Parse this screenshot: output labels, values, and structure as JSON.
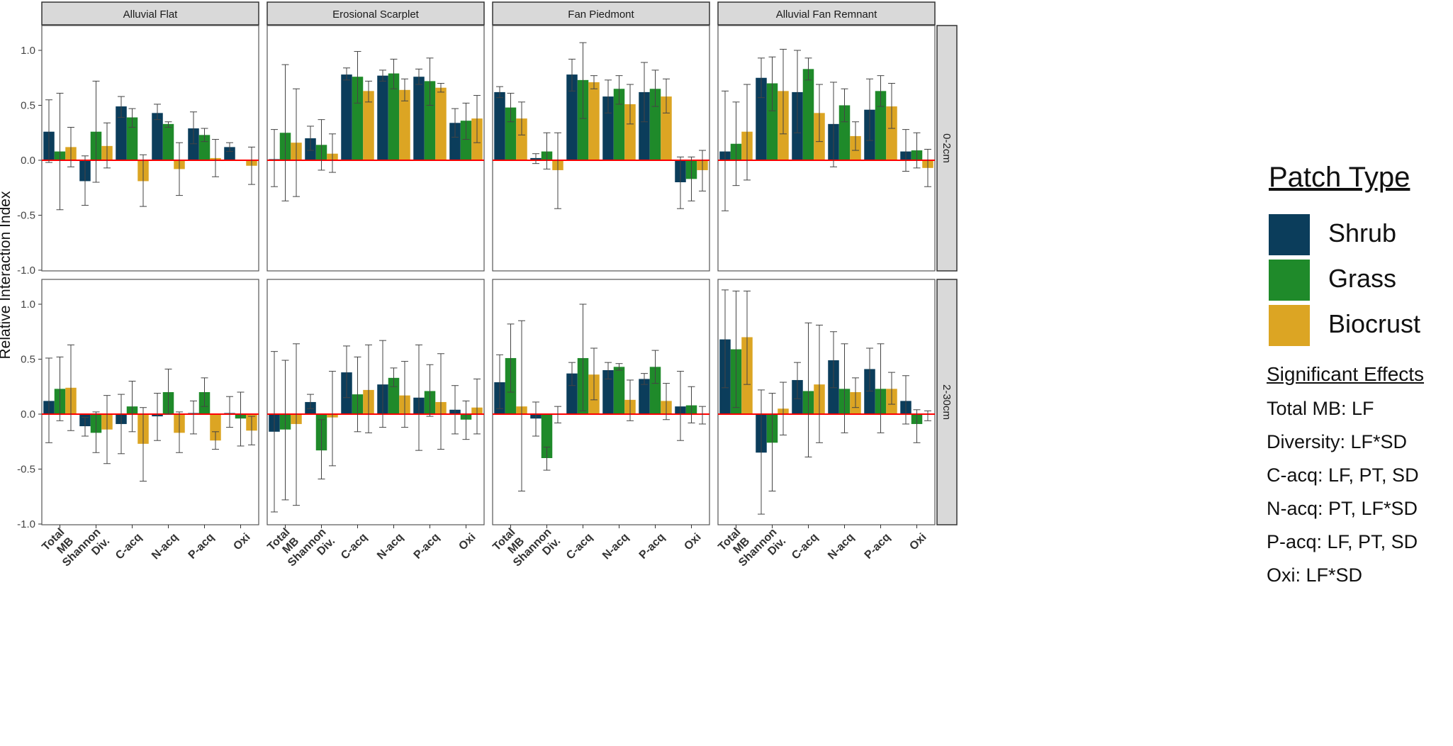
{
  "chart_data": {
    "type": "bar",
    "ylabel": "Relative Interaction Index",
    "ylim": [
      -1.0,
      1.25
    ],
    "yticks": [
      -1.0,
      -0.5,
      0.0,
      0.5,
      1.0
    ],
    "ytick_labels": [
      "-1.0",
      "-0.5",
      "0.0",
      "0.5",
      "1.0"
    ],
    "categories": [
      "Total MB",
      "Shannon Div.",
      "C-acq",
      "N-acq",
      "P-acq",
      "Oxi"
    ],
    "category_label_lines": [
      [
        "Total",
        "MB"
      ],
      [
        "Shannon",
        "Div."
      ],
      [
        "C-acq"
      ],
      [
        "N-acq"
      ],
      [
        "P-acq"
      ],
      [
        "Oxi"
      ]
    ],
    "column_facets": [
      "Alluvial Flat",
      "Erosional Scarplet",
      "Fan Piedmont",
      "Alluvial Fan Remnant"
    ],
    "row_facets": [
      "0-2cm",
      "2-30cm"
    ],
    "series_names": [
      "Shrub",
      "Grass",
      "Biocrust"
    ],
    "series_colors": [
      "#0b3d5b",
      "#1f8a2a",
      "#dca523"
    ],
    "reference_line": {
      "y": 0,
      "color": "#ff0000"
    },
    "panels": [
      {
        "row": "0-2cm",
        "col": "Alluvial Flat",
        "values": [
          [
            0.26,
            0.08,
            0.12
          ],
          [
            -0.19,
            0.26,
            0.13
          ],
          [
            0.49,
            0.39,
            -0.19
          ],
          [
            0.43,
            0.33,
            -0.08
          ],
          [
            0.29,
            0.23,
            0.02
          ],
          [
            0.12,
            0.0,
            -0.05
          ]
        ],
        "errors": [
          [
            [
              -0.02,
              0.55
            ],
            [
              -0.45,
              0.61
            ],
            [
              -0.06,
              0.3
            ]
          ],
          [
            [
              -0.41,
              0.04
            ],
            [
              -0.2,
              0.72
            ],
            [
              -0.07,
              0.34
            ]
          ],
          [
            [
              0.39,
              0.58
            ],
            [
              0.3,
              0.47
            ],
            [
              -0.42,
              0.05
            ]
          ],
          [
            [
              0.37,
              0.51
            ],
            [
              0.3,
              0.35
            ],
            [
              -0.32,
              0.16
            ]
          ],
          [
            [
              0.15,
              0.44
            ],
            [
              0.17,
              0.29
            ],
            [
              -0.15,
              0.19
            ]
          ],
          [
            [
              0.08,
              0.16
            ],
            [
              null,
              null
            ],
            [
              -0.22,
              0.12
            ]
          ]
        ]
      },
      {
        "row": "0-2cm",
        "col": "Erosional Scarplet",
        "values": [
          [
            0.01,
            0.25,
            0.16
          ],
          [
            0.2,
            0.14,
            0.06
          ],
          [
            0.78,
            0.76,
            0.63
          ],
          [
            0.77,
            0.79,
            0.64
          ],
          [
            0.76,
            0.72,
            0.66
          ],
          [
            0.34,
            0.36,
            0.38
          ]
        ],
        "errors": [
          [
            [
              -0.24,
              0.28
            ],
            [
              -0.37,
              0.87
            ],
            [
              -0.33,
              0.65
            ]
          ],
          [
            [
              0.09,
              0.31
            ],
            [
              -0.09,
              0.37
            ],
            [
              -0.11,
              0.24
            ]
          ],
          [
            [
              0.73,
              0.84
            ],
            [
              0.52,
              0.99
            ],
            [
              0.53,
              0.72
            ]
          ],
          [
            [
              0.72,
              0.82
            ],
            [
              0.65,
              0.92
            ],
            [
              0.54,
              0.74
            ]
          ],
          [
            [
              0.69,
              0.83
            ],
            [
              0.5,
              0.93
            ],
            [
              0.62,
              0.7
            ]
          ],
          [
            [
              0.21,
              0.47
            ],
            [
              0.19,
              0.52
            ],
            [
              0.16,
              0.59
            ]
          ]
        ]
      },
      {
        "row": "0-2cm",
        "col": "Fan Piedmont",
        "values": [
          [
            0.62,
            0.48,
            0.38
          ],
          [
            0.02,
            0.08,
            -0.09
          ],
          [
            0.78,
            0.73,
            0.71
          ],
          [
            0.58,
            0.65,
            0.51
          ],
          [
            0.62,
            0.65,
            0.58
          ],
          [
            -0.2,
            -0.17,
            -0.09
          ]
        ],
        "errors": [
          [
            [
              0.57,
              0.67
            ],
            [
              0.35,
              0.61
            ],
            [
              0.23,
              0.53
            ]
          ],
          [
            [
              -0.03,
              0.06
            ],
            [
              -0.08,
              0.25
            ],
            [
              -0.44,
              0.25
            ]
          ],
          [
            [
              0.63,
              0.92
            ],
            [
              0.38,
              1.07
            ],
            [
              0.65,
              0.77
            ]
          ],
          [
            [
              0.43,
              0.73
            ],
            [
              0.51,
              0.77
            ],
            [
              0.33,
              0.69
            ]
          ],
          [
            [
              0.35,
              0.89
            ],
            [
              0.49,
              0.82
            ],
            [
              0.43,
              0.74
            ]
          ],
          [
            [
              -0.44,
              0.03
            ],
            [
              -0.37,
              0.03
            ],
            [
              -0.28,
              0.09
            ]
          ]
        ]
      },
      {
        "row": "0-2cm",
        "col": "Alluvial Fan Remnant",
        "values": [
          [
            0.08,
            0.15,
            0.26
          ],
          [
            0.75,
            0.7,
            0.63
          ],
          [
            0.62,
            0.83,
            0.43
          ],
          [
            0.33,
            0.5,
            0.22
          ],
          [
            0.46,
            0.63,
            0.49
          ],
          [
            0.08,
            0.09,
            -0.07
          ]
        ],
        "errors": [
          [
            [
              -0.46,
              0.63
            ],
            [
              -0.23,
              0.53
            ],
            [
              -0.18,
              0.69
            ]
          ],
          [
            [
              0.57,
              0.93
            ],
            [
              0.45,
              0.94
            ],
            [
              0.24,
              1.01
            ]
          ],
          [
            [
              0.25,
              1.0
            ],
            [
              0.73,
              0.93
            ],
            [
              0.17,
              0.69
            ]
          ],
          [
            [
              -0.06,
              0.71
            ],
            [
              0.35,
              0.65
            ],
            [
              0.09,
              0.35
            ]
          ],
          [
            [
              0.18,
              0.74
            ],
            [
              0.49,
              0.77
            ],
            [
              0.29,
              0.7
            ]
          ],
          [
            [
              -0.1,
              0.28
            ],
            [
              -0.07,
              0.25
            ],
            [
              -0.24,
              0.1
            ]
          ]
        ]
      },
      {
        "row": "2-30cm",
        "col": "Alluvial Flat",
        "values": [
          [
            0.12,
            0.23,
            0.24
          ],
          [
            -0.11,
            -0.17,
            -0.14
          ],
          [
            -0.09,
            0.07,
            -0.27
          ],
          [
            -0.02,
            0.2,
            -0.17
          ],
          [
            0.01,
            0.2,
            -0.24
          ],
          [
            0.01,
            -0.04,
            -0.15
          ]
        ],
        "errors": [
          [
            [
              -0.26,
              0.51
            ],
            [
              -0.06,
              0.52
            ],
            [
              -0.15,
              0.63
            ]
          ],
          [
            [
              -0.2,
              -0.03
            ],
            [
              -0.35,
              0.02
            ],
            [
              -0.45,
              0.17
            ]
          ],
          [
            [
              -0.36,
              0.18
            ],
            [
              -0.16,
              0.3
            ],
            [
              -0.61,
              0.06
            ]
          ],
          [
            [
              -0.24,
              0.19
            ],
            [
              0.0,
              0.41
            ],
            [
              -0.35,
              0.02
            ]
          ],
          [
            [
              -0.18,
              0.12
            ],
            [
              0.07,
              0.33
            ],
            [
              -0.32,
              -0.16
            ]
          ],
          [
            [
              -0.12,
              0.16
            ],
            [
              -0.29,
              0.2
            ],
            [
              -0.28,
              -0.02
            ]
          ]
        ]
      },
      {
        "row": "2-30cm",
        "col": "Erosional Scarplet",
        "values": [
          [
            -0.16,
            -0.14,
            -0.09
          ],
          [
            0.11,
            -0.33,
            -0.03
          ],
          [
            0.38,
            0.18,
            0.22
          ],
          [
            0.27,
            0.33,
            0.17
          ],
          [
            0.15,
            0.21,
            0.11
          ],
          [
            0.04,
            -0.05,
            0.06
          ]
        ],
        "errors": [
          [
            [
              -0.89,
              0.57
            ],
            [
              -0.78,
              0.49
            ],
            [
              -0.83,
              0.64
            ]
          ],
          [
            [
              0.05,
              0.18
            ],
            [
              -0.59,
              -0.05
            ],
            [
              -0.47,
              0.39
            ]
          ],
          [
            [
              0.15,
              0.62
            ],
            [
              -0.16,
              0.52
            ],
            [
              -0.17,
              0.63
            ]
          ],
          [
            [
              -0.12,
              0.67
            ],
            [
              0.25,
              0.42
            ],
            [
              -0.12,
              0.48
            ]
          ],
          [
            [
              -0.33,
              0.63
            ],
            [
              -0.02,
              0.45
            ],
            [
              -0.32,
              0.55
            ]
          ],
          [
            [
              -0.18,
              0.26
            ],
            [
              -0.23,
              0.12
            ],
            [
              -0.18,
              0.32
            ]
          ]
        ]
      },
      {
        "row": "2-30cm",
        "col": "Fan Piedmont",
        "values": [
          [
            0.29,
            0.51,
            0.07
          ],
          [
            -0.04,
            -0.4,
            0.0
          ],
          [
            0.37,
            0.51,
            0.36
          ],
          [
            0.4,
            0.43,
            0.13
          ],
          [
            0.32,
            0.43,
            0.12
          ],
          [
            0.07,
            0.08,
            0.0
          ]
        ],
        "errors": [
          [
            [
              0.05,
              0.54
            ],
            [
              0.2,
              0.82
            ],
            [
              -0.7,
              0.85
            ]
          ],
          [
            [
              -0.2,
              0.11
            ],
            [
              -0.51,
              -0.3
            ],
            [
              -0.08,
              0.07
            ]
          ],
          [
            [
              0.26,
              0.47
            ],
            [
              0.03,
              1.0
            ],
            [
              0.13,
              0.6
            ]
          ],
          [
            [
              0.32,
              0.47
            ],
            [
              0.4,
              0.46
            ],
            [
              -0.06,
              0.31
            ]
          ],
          [
            [
              0.27,
              0.37
            ],
            [
              0.28,
              0.58
            ],
            [
              -0.05,
              0.28
            ]
          ],
          [
            [
              -0.24,
              0.39
            ],
            [
              -0.08,
              0.25
            ],
            [
              -0.09,
              0.07
            ]
          ]
        ]
      },
      {
        "row": "2-30cm",
        "col": "Alluvial Fan Remnant",
        "values": [
          [
            0.68,
            0.59,
            0.7
          ],
          [
            -0.35,
            -0.26,
            0.05
          ],
          [
            0.31,
            0.21,
            0.27
          ],
          [
            0.49,
            0.23,
            0.2
          ],
          [
            0.41,
            0.23,
            0.23
          ],
          [
            0.12,
            -0.09,
            0.0
          ]
        ],
        "errors": [
          [
            [
              0.24,
              1.13
            ],
            [
              0.06,
              1.12
            ],
            [
              0.27,
              1.12
            ]
          ],
          [
            [
              -0.91,
              0.22
            ],
            [
              -0.7,
              0.19
            ],
            [
              -0.19,
              0.29
            ]
          ],
          [
            [
              0.14,
              0.47
            ],
            [
              -0.39,
              0.83
            ],
            [
              -0.26,
              0.81
            ]
          ],
          [
            [
              0.24,
              0.75
            ],
            [
              -0.17,
              0.64
            ],
            [
              0.06,
              0.33
            ]
          ],
          [
            [
              0.21,
              0.6
            ],
            [
              -0.17,
              0.64
            ],
            [
              0.09,
              0.38
            ]
          ],
          [
            [
              -0.09,
              0.35
            ],
            [
              -0.26,
              0.04
            ],
            [
              -0.06,
              0.03
            ]
          ]
        ]
      }
    ]
  },
  "legend": {
    "title": "Patch Type",
    "items": [
      {
        "label": "Shrub",
        "color": "#0b3d5b"
      },
      {
        "label": "Grass",
        "color": "#1f8a2a"
      },
      {
        "label": "Biocrust",
        "color": "#dca523"
      }
    ]
  },
  "significant_effects": {
    "title": "Significant Effects",
    "items": [
      "Total MB: LF",
      "Diversity: LF*SD",
      "C-acq: LF, PT, SD",
      "N-acq: PT, LF*SD",
      "P-acq: LF, PT, SD",
      "Oxi: LF*SD"
    ]
  }
}
